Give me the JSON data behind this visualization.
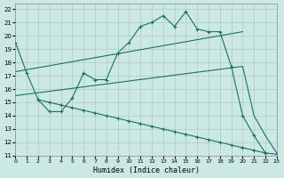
{
  "xlabel": "Humidex (Indice chaleur)",
  "bg_color": "#cce8e2",
  "grid_color": "#aacccc",
  "line_color": "#1a7068",
  "xlim": [
    0,
    23
  ],
  "ylim": [
    11,
    22.4
  ],
  "xticks": [
    0,
    1,
    2,
    3,
    4,
    5,
    6,
    7,
    8,
    9,
    10,
    11,
    12,
    13,
    14,
    15,
    16,
    17,
    18,
    19,
    20,
    21,
    22,
    23
  ],
  "yticks": [
    11,
    12,
    13,
    14,
    15,
    16,
    17,
    18,
    19,
    20,
    21,
    22
  ],
  "series": [
    {
      "x": [
        0,
        1,
        2,
        3,
        4,
        5,
        6,
        7,
        8,
        9,
        10,
        11,
        12,
        13,
        14,
        15,
        16,
        17,
        18,
        19,
        20,
        21,
        22
      ],
      "y": [
        19.5,
        17.2,
        15.2,
        14.3,
        14.3,
        15.3,
        17.2,
        16.7,
        16.7,
        18.7,
        19.5,
        20.7,
        21.0,
        21.5,
        20.7,
        21.8,
        20.5,
        20.3,
        20.3,
        17.7,
        14.0,
        12.5,
        11.2
      ],
      "marker": true
    },
    {
      "x": [
        0,
        20
      ],
      "y": [
        17.3,
        20.3
      ],
      "marker": false
    },
    {
      "x": [
        0,
        20,
        21,
        22,
        23
      ],
      "y": [
        15.5,
        17.7,
        14.0,
        12.5,
        11.2
      ],
      "marker": false
    },
    {
      "x": [
        2,
        3,
        4,
        5,
        6,
        7,
        8,
        9,
        10,
        11,
        12,
        13,
        14,
        15,
        16,
        17,
        18,
        19,
        20,
        21,
        22,
        23
      ],
      "y": [
        15.2,
        15.0,
        14.8,
        14.6,
        14.4,
        14.2,
        14.0,
        13.8,
        13.6,
        13.4,
        13.2,
        13.0,
        12.8,
        12.6,
        12.4,
        12.2,
        12.0,
        11.8,
        11.6,
        11.4,
        11.2,
        11.1
      ],
      "marker": true
    }
  ]
}
